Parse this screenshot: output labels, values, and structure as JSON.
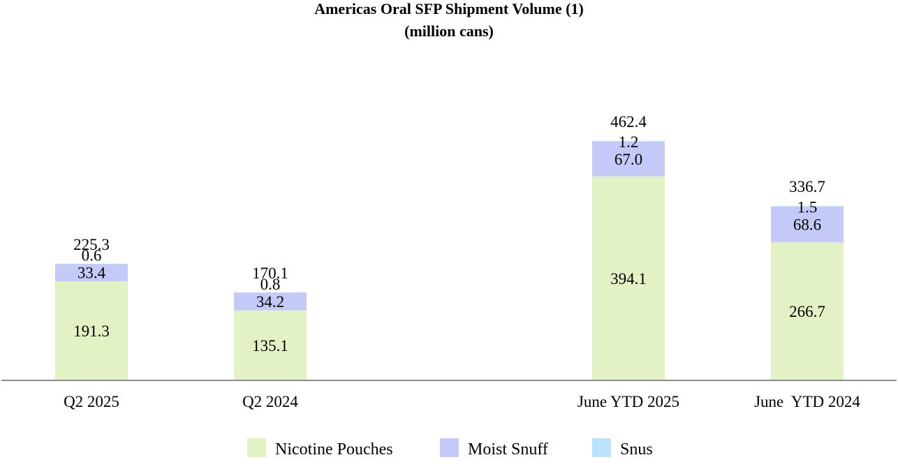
{
  "chart_data": {
    "type": "bar",
    "stacked": true,
    "title": "Americas Oral SFP Shipment Volume (1)",
    "subtitle": "(million cans)",
    "categories": [
      "Q2 2025",
      "Q2 2024",
      "June YTD 2025",
      "June  YTD 2024"
    ],
    "series": [
      {
        "name": "Nicotine Pouches",
        "values": [
          191.3,
          135.1,
          394.1,
          266.7
        ],
        "labels": [
          "191.3",
          "135.1",
          "394.1",
          "266.7"
        ],
        "color": "#e2f2c4"
      },
      {
        "name": "Moist Snuff",
        "values": [
          33.4,
          34.2,
          67.0,
          68.6
        ],
        "labels": [
          "33.4",
          "34.2",
          "67.0",
          "68.6"
        ],
        "color": "#c4c9f8"
      },
      {
        "name": "Snus",
        "values": [
          0.6,
          0.8,
          1.2,
          1.5
        ],
        "labels": [
          "0.6",
          "0.8",
          "1.2",
          "1.5"
        ],
        "color": "#bde2fb"
      }
    ],
    "totals": [
      "225.3",
      "170.1",
      "462.4",
      "336.7"
    ],
    "ylim": [
      0,
      600
    ],
    "grid": false,
    "legend_position": "bottom"
  }
}
